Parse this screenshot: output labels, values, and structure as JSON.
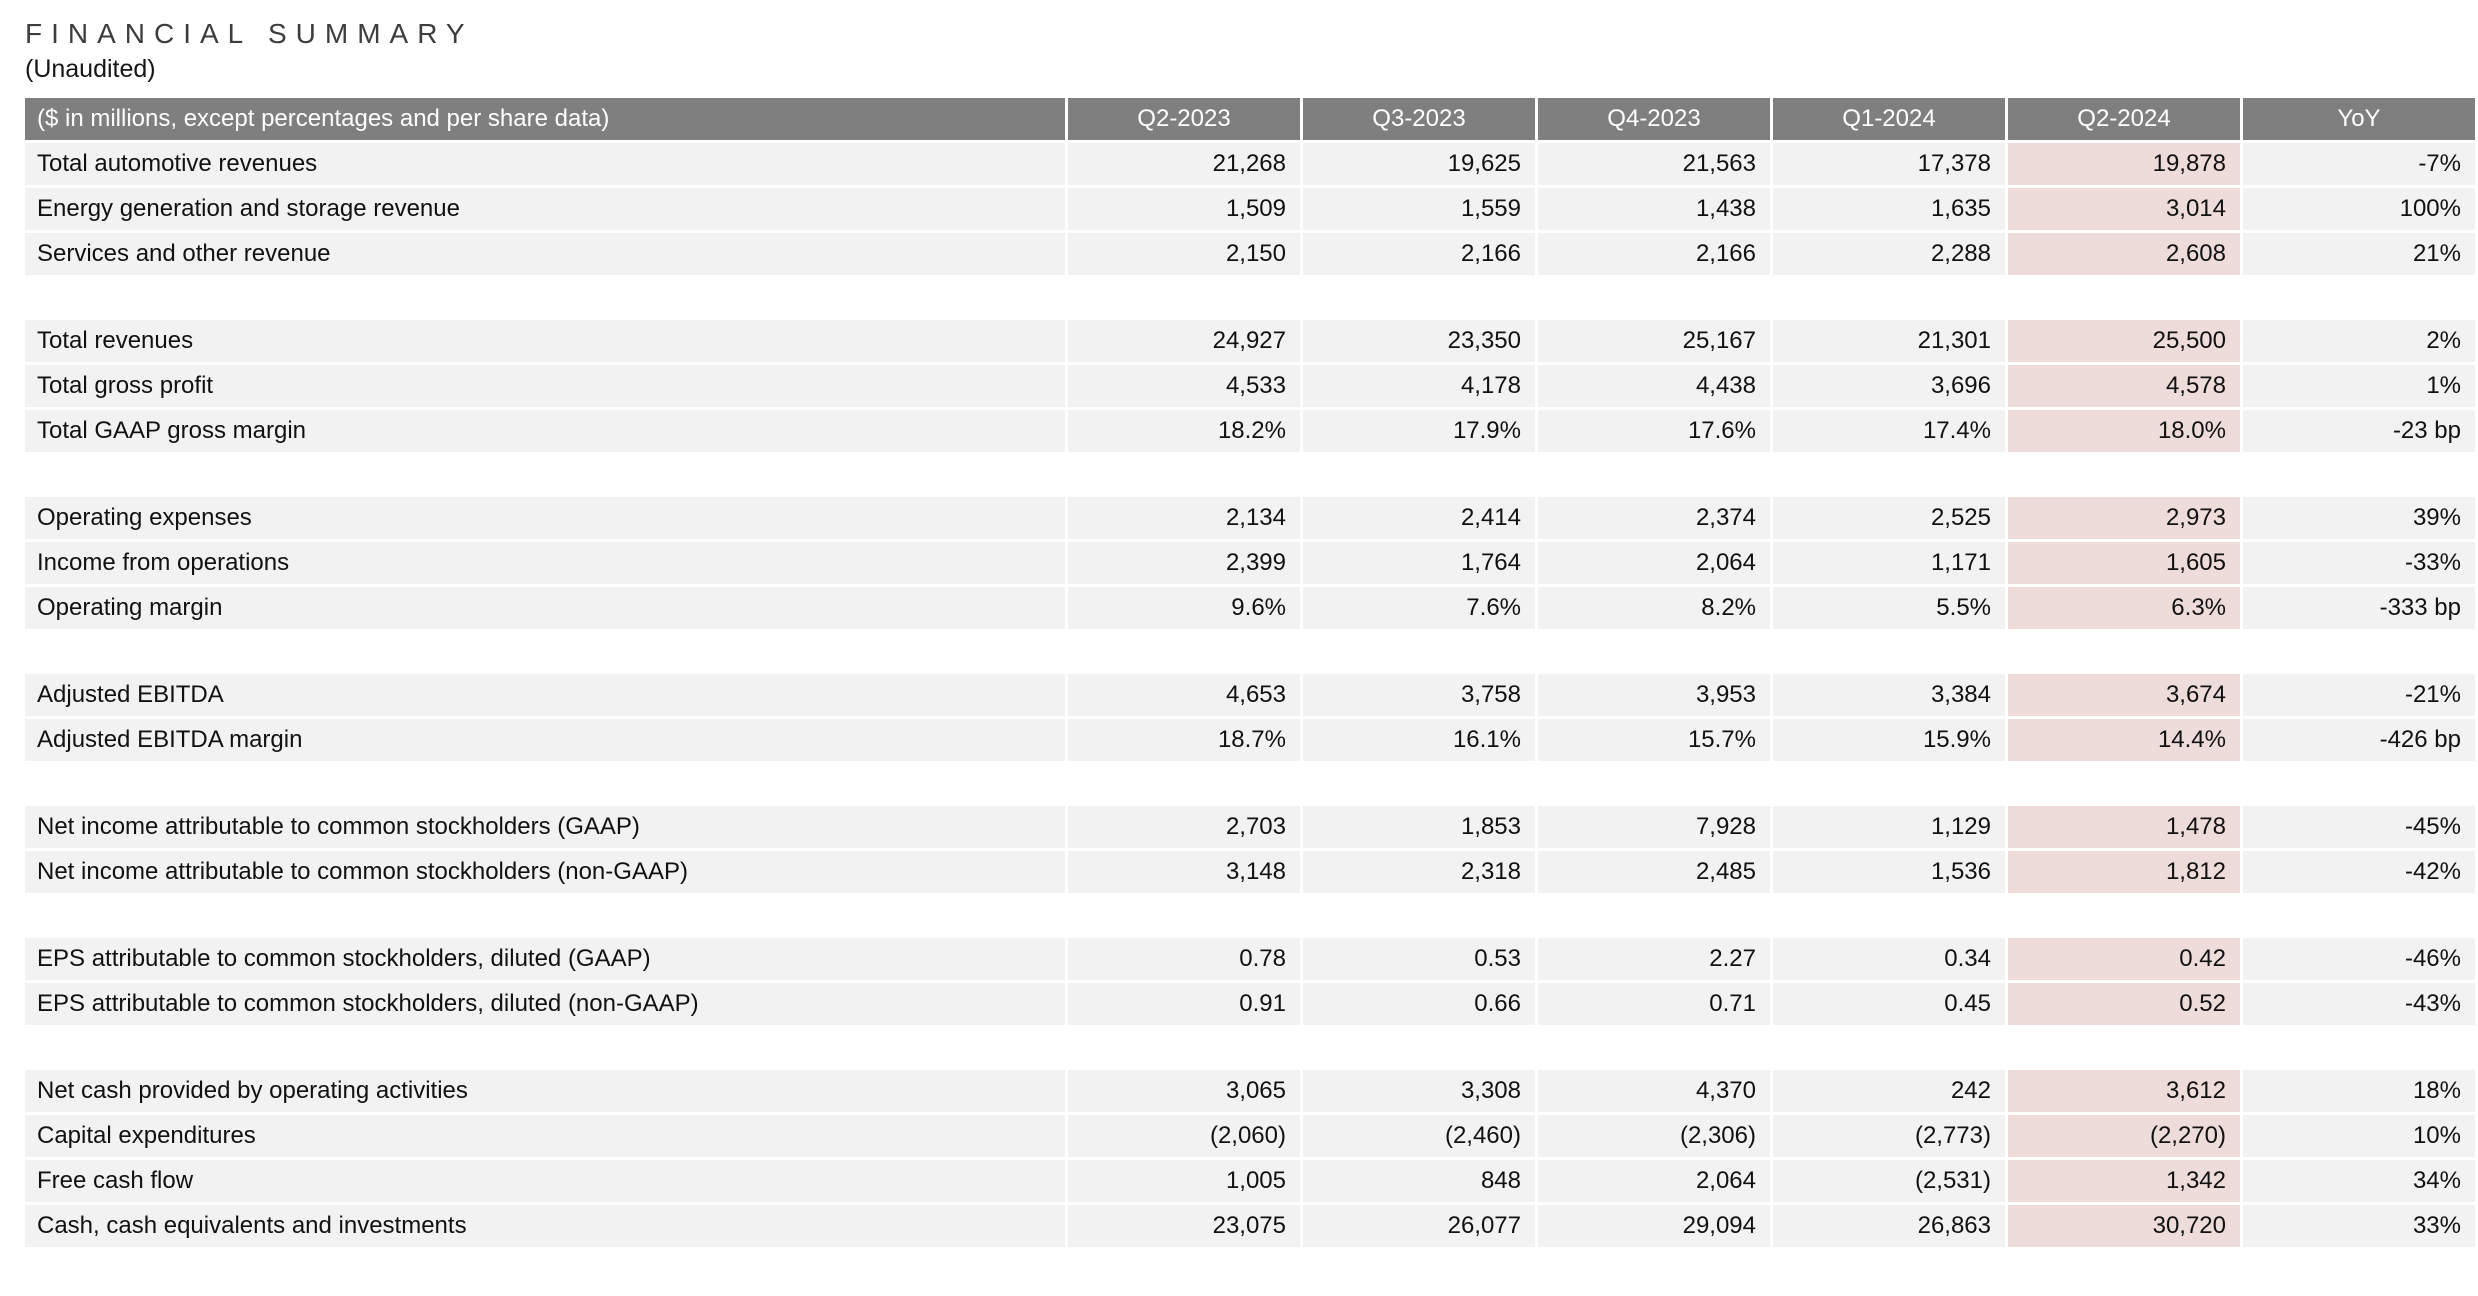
{
  "page": {
    "title": "FINANCIAL SUMMARY",
    "subtitle": "(Unaudited)"
  },
  "table": {
    "header_label": "($ in millions, except percentages and per share data)",
    "columns": [
      "Q2-2023",
      "Q3-2023",
      "Q4-2023",
      "Q1-2024",
      "Q2-2024",
      "YoY"
    ],
    "highlight_column": "Q2-2024",
    "highlight_column_index": 4,
    "colors": {
      "header_bg": "#7f7f7f",
      "header_text": "#ffffff",
      "row_bg": "#f2f2f2",
      "highlight_bg": "#eedcdb"
    },
    "sections": [
      {
        "name": "revenues",
        "rows": [
          {
            "label": "Total automotive revenues",
            "values": [
              "21,268",
              "19,625",
              "21,563",
              "17,378",
              "19,878",
              "-7%"
            ]
          },
          {
            "label": "Energy generation and storage revenue",
            "values": [
              "1,509",
              "1,559",
              "1,438",
              "1,635",
              "3,014",
              "100%"
            ]
          },
          {
            "label": "Services and other revenue",
            "values": [
              "2,150",
              "2,166",
              "2,166",
              "2,288",
              "2,608",
              "21%"
            ]
          }
        ]
      },
      {
        "name": "totals",
        "rows": [
          {
            "label": "Total revenues",
            "values": [
              "24,927",
              "23,350",
              "25,167",
              "21,301",
              "25,500",
              "2%"
            ]
          },
          {
            "label": "Total gross profit",
            "values": [
              "4,533",
              "4,178",
              "4,438",
              "3,696",
              "4,578",
              "1%"
            ]
          },
          {
            "label": "Total GAAP gross margin",
            "values": [
              "18.2%",
              "17.9%",
              "17.6%",
              "17.4%",
              "18.0%",
              "-23 bp"
            ]
          }
        ]
      },
      {
        "name": "operating",
        "rows": [
          {
            "label": "Operating expenses",
            "values": [
              "2,134",
              "2,414",
              "2,374",
              "2,525",
              "2,973",
              "39%"
            ]
          },
          {
            "label": "Income from operations",
            "values": [
              "2,399",
              "1,764",
              "2,064",
              "1,171",
              "1,605",
              "-33%"
            ]
          },
          {
            "label": "Operating margin",
            "values": [
              "9.6%",
              "7.6%",
              "8.2%",
              "5.5%",
              "6.3%",
              "-333 bp"
            ]
          }
        ]
      },
      {
        "name": "ebitda",
        "rows": [
          {
            "label": "Adjusted EBITDA",
            "values": [
              "4,653",
              "3,758",
              "3,953",
              "3,384",
              "3,674",
              "-21%"
            ]
          },
          {
            "label": "Adjusted EBITDA margin",
            "values": [
              "18.7%",
              "16.1%",
              "15.7%",
              "15.9%",
              "14.4%",
              "-426 bp"
            ]
          }
        ]
      },
      {
        "name": "net-income",
        "rows": [
          {
            "label": "Net income attributable to common stockholders (GAAP)",
            "values": [
              "2,703",
              "1,853",
              "7,928",
              "1,129",
              "1,478",
              "-45%"
            ]
          },
          {
            "label": "Net income attributable to common stockholders (non-GAAP)",
            "values": [
              "3,148",
              "2,318",
              "2,485",
              "1,536",
              "1,812",
              "-42%"
            ]
          }
        ]
      },
      {
        "name": "eps",
        "rows": [
          {
            "label": "EPS attributable to common stockholders, diluted (GAAP)",
            "values": [
              "0.78",
              "0.53",
              "2.27",
              "0.34",
              "0.42",
              "-46%"
            ]
          },
          {
            "label": "EPS attributable to common stockholders, diluted (non-GAAP)",
            "values": [
              "0.91",
              "0.66",
              "0.71",
              "0.45",
              "0.52",
              "-43%"
            ]
          }
        ]
      },
      {
        "name": "cash",
        "rows": [
          {
            "label": "Net cash provided by operating activities",
            "values": [
              "3,065",
              "3,308",
              "4,370",
              "242",
              "3,612",
              "18%"
            ]
          },
          {
            "label": "Capital expenditures",
            "values": [
              "(2,060)",
              "(2,460)",
              "(2,306)",
              "(2,773)",
              "(2,270)",
              "10%"
            ]
          },
          {
            "label": "Free cash flow",
            "values": [
              "1,005",
              "848",
              "2,064",
              "(2,531)",
              "1,342",
              "34%"
            ]
          },
          {
            "label": "Cash, cash equivalents and investments",
            "values": [
              "23,075",
              "26,077",
              "29,094",
              "26,863",
              "30,720",
              "33%"
            ]
          }
        ]
      }
    ]
  }
}
